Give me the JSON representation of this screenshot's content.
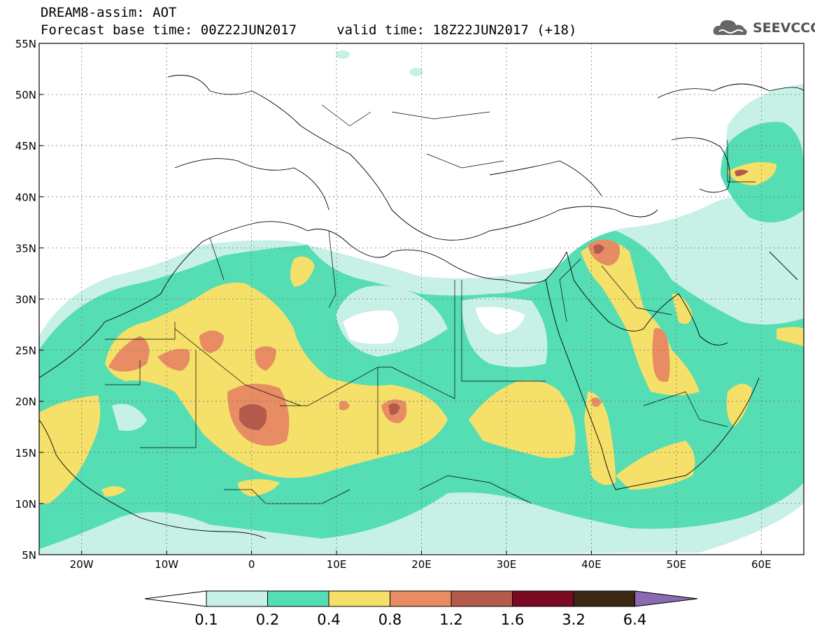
{
  "header": {
    "line1": "DREAM8-assim: AOT",
    "line2": "Forecast base time: 00Z22JUN2017     valid time: 18Z22JUN2017 (+18)"
  },
  "logo": {
    "text": "SEEVCCC",
    "icon": "cloud-icon"
  },
  "map": {
    "lat_labels": [
      "55N",
      "50N",
      "45N",
      "40N",
      "35N",
      "30N",
      "25N",
      "20N",
      "15N",
      "10N",
      "5N"
    ],
    "lon_labels": [
      "20W",
      "10W",
      "0",
      "10E",
      "20E",
      "30E",
      "40E",
      "50E",
      "60E"
    ]
  },
  "legend": {
    "labels": [
      "0.1",
      "0.2",
      "0.4",
      "0.8",
      "1.2",
      "1.6",
      "3.2",
      "6.4"
    ],
    "colors": [
      "#ffffff",
      "#c7f0e6",
      "#55ddb4",
      "#f5e06a",
      "#e88c64",
      "#b45a4b",
      "#7a0a22",
      "#3b2812",
      "#8a6ab0"
    ]
  }
}
